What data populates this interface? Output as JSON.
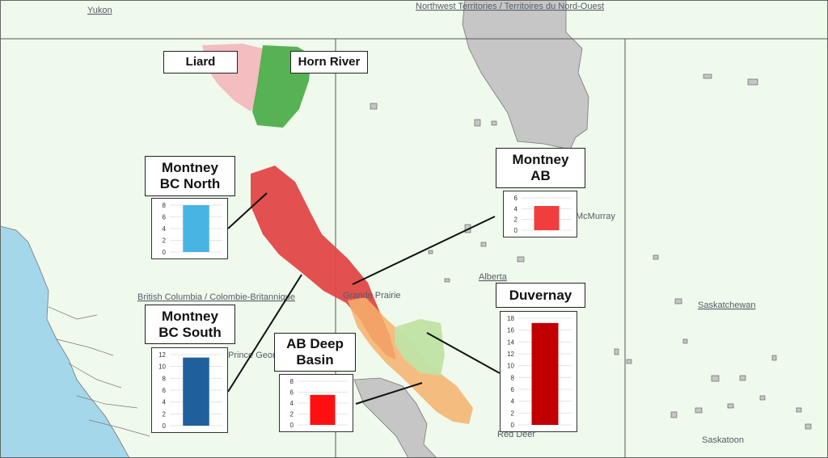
{
  "colors": {
    "land": "#effaed",
    "water": "#a5d7ea",
    "territory": "#c6c6c6",
    "border": "#555555",
    "liard": "#f3b9bd",
    "horn_river": "#4eae4c",
    "montney_bc": "#e04747",
    "ab_deep_basin": "#f4a765",
    "duvernay": "#bfe3a4",
    "chart_cyan": "#48b4e3",
    "chart_blue": "#1f5f9b",
    "chart_red": "#f23d3d",
    "chart_bright_red": "#ff1010",
    "chart_dark_red": "#c00000"
  },
  "places": {
    "yukon": "Yukon",
    "nwt": "Northwest Territories / Territoires du Nord-Ouest",
    "bc": "British Columbia / Colombie-Britannique",
    "alberta": "Alberta",
    "saskatchewan": "Saskatchewan",
    "grande_prairie": "Grande Prairie",
    "mcmurray": "McMurray",
    "prince_george": "Prince Geor",
    "red_deer": "Red Deer",
    "saskatoon": "Saskatoon"
  },
  "callouts": {
    "liard": "Liard",
    "horn_river": "Horn River",
    "montney_bc_north": "Montney\nBC North",
    "montney_ab": "Montney\nAB",
    "montney_bc_south": "Montney\nBC South",
    "duvernay": "Duvernay",
    "ab_deep_basin": "AB Deep\nBasin"
  },
  "chart_data": [
    {
      "type": "bar",
      "title": "Montney BC North",
      "value": 8,
      "ylim": [
        0,
        8
      ],
      "ticks": [
        0,
        2,
        4,
        6,
        8
      ],
      "color": "#48b4e3"
    },
    {
      "type": "bar",
      "title": "Montney AB",
      "value": 4.5,
      "ylim": [
        0,
        6
      ],
      "ticks": [
        0,
        2,
        4,
        6
      ],
      "color": "#f23d3d"
    },
    {
      "type": "bar",
      "title": "Montney BC South",
      "value": 11.5,
      "ylim": [
        0,
        12
      ],
      "ticks": [
        0,
        2,
        4,
        6,
        8,
        10,
        12
      ],
      "color": "#1f5f9b"
    },
    {
      "type": "bar",
      "title": "Duvernay",
      "value": 17.2,
      "ylim": [
        0,
        18
      ],
      "ticks": [
        0,
        2,
        4,
        6,
        8,
        10,
        12,
        14,
        16,
        18
      ],
      "color": "#c00000"
    },
    {
      "type": "bar",
      "title": "AB Deep Basin",
      "value": 5.5,
      "ylim": [
        0,
        8
      ],
      "ticks": [
        0,
        2,
        4,
        6,
        8
      ],
      "color": "#ff1010"
    }
  ]
}
